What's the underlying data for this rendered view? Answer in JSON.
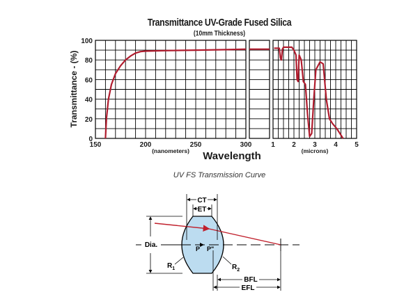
{
  "chart_data": {
    "type": "line",
    "title": "Transmittance UV-Grade Fused Silica",
    "subtitle": "(10mm Thickness)",
    "ylabel": "Transmittance - (%)",
    "xlabel": "Wavelength",
    "ylim": [
      0,
      100
    ],
    "yticks": [
      "0",
      "20",
      "40",
      "60",
      "80",
      "100"
    ],
    "grid": true,
    "series_color": "#b01c2e",
    "panels": [
      {
        "unit_label": "(nanometers)",
        "xlim": [
          150,
          300
        ],
        "ticks": [
          {
            "v": 150,
            "label": "150"
          },
          {
            "v": 200,
            "label": "200"
          },
          {
            "v": 250,
            "label": "250"
          },
          {
            "v": 300,
            "label": "300"
          }
        ],
        "points": [
          [
            160,
            0
          ],
          [
            161,
            20
          ],
          [
            163,
            40
          ],
          [
            166,
            55
          ],
          [
            170,
            66
          ],
          [
            175,
            74
          ],
          [
            180,
            80
          ],
          [
            185,
            84
          ],
          [
            190,
            87
          ],
          [
            195,
            88.5
          ],
          [
            200,
            89
          ],
          [
            220,
            89.5
          ],
          [
            250,
            90
          ],
          [
            280,
            90.5
          ],
          [
            300,
            91
          ]
        ]
      },
      {
        "unit_label": "",
        "xlim": [
          0,
          1
        ],
        "ticks": [],
        "points": [
          [
            0,
            91
          ],
          [
            1,
            91
          ]
        ]
      },
      {
        "unit_label": "(microns)",
        "xlim": [
          1,
          5
        ],
        "ticks": [
          {
            "v": 1,
            "label": "1"
          },
          {
            "v": 2,
            "label": "2"
          },
          {
            "v": 3,
            "label": "3"
          },
          {
            "v": 4,
            "label": "4"
          },
          {
            "v": 5,
            "label": "5"
          }
        ],
        "points": [
          [
            1.05,
            92
          ],
          [
            1.3,
            92
          ],
          [
            1.35,
            82
          ],
          [
            1.4,
            80
          ],
          [
            1.45,
            91
          ],
          [
            1.5,
            93
          ],
          [
            1.9,
            93
          ],
          [
            2.0,
            90
          ],
          [
            2.1,
            85
          ],
          [
            2.15,
            60
          ],
          [
            2.2,
            58
          ],
          [
            2.25,
            85
          ],
          [
            2.35,
            80
          ],
          [
            2.45,
            58
          ],
          [
            2.55,
            55
          ],
          [
            2.65,
            25
          ],
          [
            2.75,
            2
          ],
          [
            2.85,
            5
          ],
          [
            2.95,
            40
          ],
          [
            3.05,
            70
          ],
          [
            3.25,
            78
          ],
          [
            3.4,
            76
          ],
          [
            3.55,
            40
          ],
          [
            3.7,
            20
          ],
          [
            3.85,
            15
          ],
          [
            4.05,
            10
          ],
          [
            4.2,
            5
          ],
          [
            4.35,
            0
          ]
        ]
      }
    ]
  },
  "caption": "UV FS Transmission Curve",
  "diagram": {
    "labels": {
      "ct": "CT",
      "et": "ET",
      "dia": "Dia.",
      "p": "P",
      "p2": "P\"",
      "r1": "R",
      "r1_sub": "1",
      "r2": "R",
      "r2_sub": "2",
      "bfl": "BFL",
      "efl": "EFL"
    },
    "lens_fill": "#bcdcf0",
    "ray_color": "#c0202c"
  }
}
